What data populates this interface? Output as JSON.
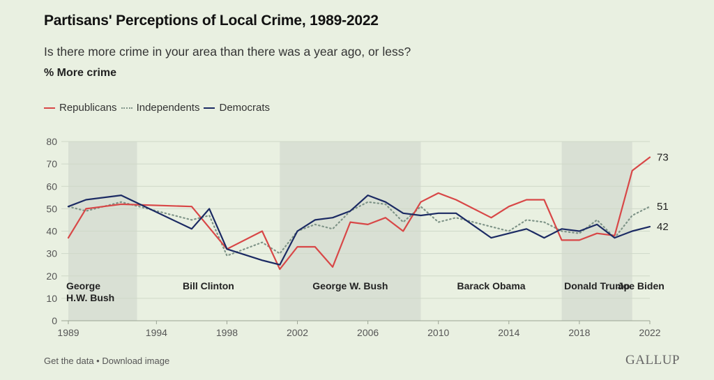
{
  "title": "Partisans' Perceptions of Local Crime, 1989-2022",
  "subtitle": "Is there more crime in your area than there was a year ago, or less?",
  "unit": "% More crime",
  "footer": {
    "get_data": "Get the data",
    "separator": " • ",
    "download": "Download image"
  },
  "brand": "GALLUP",
  "colors": {
    "republicans": "#d84747",
    "independents": "#7f9488",
    "democrats": "#1b2a63",
    "shade": "#d9e0d4"
  },
  "chart_data": {
    "type": "line",
    "title": "Partisans' Perceptions of Local Crime, 1989-2022",
    "subtitle": "Is there more crime in your area than there was a year ago, or less?",
    "ylabel": "% More crime",
    "xlim": [
      1989,
      2022
    ],
    "ylim": [
      0,
      80
    ],
    "yticks": [
      0,
      10,
      20,
      30,
      40,
      50,
      60,
      70,
      80
    ],
    "xticks": [
      1989,
      1994,
      1998,
      2002,
      2006,
      2010,
      2014,
      2018,
      2022
    ],
    "grid": true,
    "legend_position": "top-left",
    "series": [
      {
        "name": "Republicans",
        "style": "solid",
        "points": [
          [
            1989,
            37
          ],
          [
            1990,
            50
          ],
          [
            1992,
            52
          ],
          [
            1996,
            51
          ],
          [
            1998,
            32
          ],
          [
            2000,
            40
          ],
          [
            2001,
            23
          ],
          [
            2002,
            33
          ],
          [
            2003,
            33
          ],
          [
            2004,
            24
          ],
          [
            2005,
            44
          ],
          [
            2006,
            43
          ],
          [
            2007,
            46
          ],
          [
            2008,
            40
          ],
          [
            2009,
            53
          ],
          [
            2010,
            57
          ],
          [
            2011,
            54
          ],
          [
            2013,
            46
          ],
          [
            2014,
            51
          ],
          [
            2015,
            54
          ],
          [
            2016,
            54
          ],
          [
            2017,
            36
          ],
          [
            2018,
            36
          ],
          [
            2019,
            39
          ],
          [
            2020,
            38
          ],
          [
            2021,
            67
          ],
          [
            2022,
            73
          ]
        ]
      },
      {
        "name": "Independents",
        "style": "dotted",
        "points": [
          [
            1989,
            51
          ],
          [
            1990,
            49
          ],
          [
            1992,
            53
          ],
          [
            1996,
            45
          ],
          [
            1997,
            47
          ],
          [
            1998,
            29
          ],
          [
            2000,
            35
          ],
          [
            2001,
            30
          ],
          [
            2002,
            40
          ],
          [
            2003,
            43
          ],
          [
            2004,
            41
          ],
          [
            2005,
            49
          ],
          [
            2006,
            53
          ],
          [
            2007,
            52
          ],
          [
            2008,
            44
          ],
          [
            2009,
            51
          ],
          [
            2010,
            44
          ],
          [
            2011,
            46
          ],
          [
            2013,
            42
          ],
          [
            2014,
            40
          ],
          [
            2015,
            45
          ],
          [
            2016,
            44
          ],
          [
            2017,
            40
          ],
          [
            2018,
            39
          ],
          [
            2019,
            45
          ],
          [
            2020,
            37
          ],
          [
            2021,
            47
          ],
          [
            2022,
            51
          ]
        ]
      },
      {
        "name": "Democrats",
        "style": "solid",
        "points": [
          [
            1989,
            51
          ],
          [
            1990,
            54
          ],
          [
            1992,
            56
          ],
          [
            1996,
            41
          ],
          [
            1997,
            50
          ],
          [
            1998,
            32
          ],
          [
            2000,
            27
          ],
          [
            2001,
            25
          ],
          [
            2002,
            40
          ],
          [
            2003,
            45
          ],
          [
            2004,
            46
          ],
          [
            2005,
            49
          ],
          [
            2006,
            56
          ],
          [
            2007,
            53
          ],
          [
            2008,
            48
          ],
          [
            2009,
            47
          ],
          [
            2010,
            48
          ],
          [
            2011,
            48
          ],
          [
            2013,
            37
          ],
          [
            2014,
            39
          ],
          [
            2015,
            41
          ],
          [
            2016,
            37
          ],
          [
            2017,
            41
          ],
          [
            2018,
            40
          ],
          [
            2019,
            43
          ],
          [
            2020,
            37
          ],
          [
            2021,
            40
          ],
          [
            2022,
            42
          ]
        ]
      }
    ],
    "end_labels": [
      "73",
      "51",
      "42"
    ],
    "eras": [
      {
        "label_lines": [
          "George",
          "H.W. Bush"
        ],
        "start": 1989,
        "end": 1992.9,
        "shaded": true
      },
      {
        "label_lines": [
          "Bill Clinton"
        ],
        "start": 1992.9,
        "end": 2001,
        "shaded": false
      },
      {
        "label_lines": [
          "George W. Bush"
        ],
        "start": 2001,
        "end": 2009,
        "shaded": true
      },
      {
        "label_lines": [
          "Barack Obama"
        ],
        "start": 2009,
        "end": 2017,
        "shaded": false
      },
      {
        "label_lines": [
          "Donald Trump"
        ],
        "start": 2017,
        "end": 2021,
        "shaded": true
      },
      {
        "label_lines": [
          "Joe Biden"
        ],
        "start": 2021,
        "end": 2022,
        "shaded": false
      }
    ]
  }
}
